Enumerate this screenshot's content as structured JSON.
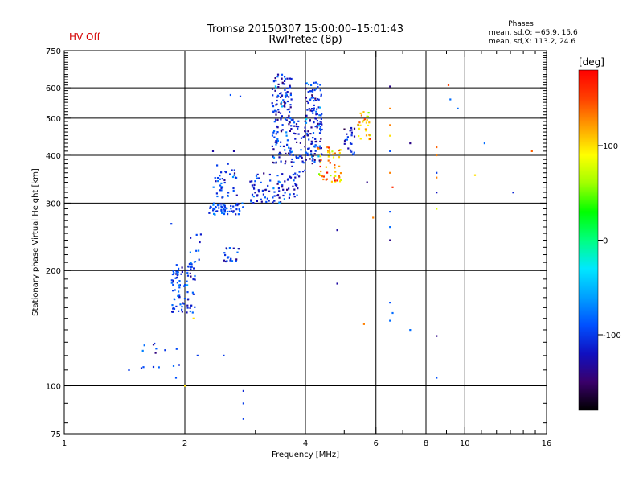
{
  "header": {
    "title_line1": "Tromsø 20150307 15:00:00–15:01:43",
    "title_line2": "RwPretec (8p)",
    "hv_status": "HV Off",
    "phase_title": "Phases",
    "phase_line1": "mean, sd,O: −65.9, 15.6",
    "phase_line2": "mean, sd,X: 113.2, 24.6",
    "hv_color": "#d40000"
  },
  "colorbar": {
    "label": "[deg]",
    "min": -180,
    "max": 180,
    "ticks": [
      100,
      0,
      -100
    ],
    "stops": [
      "#000000",
      "#3a006a",
      "#1010c0",
      "#0050ff",
      "#00a0ff",
      "#00e8ff",
      "#00ff80",
      "#00ff00",
      "#a0ff00",
      "#ffff00",
      "#ffa000",
      "#ff4000",
      "#ff0000"
    ]
  },
  "chart_data": {
    "type": "scatter",
    "xlabel": "Frequency [MHz]",
    "ylabel": "Stationary phase Virtual Height [km]",
    "xscale": "log",
    "yscale": "log",
    "xlim": [
      1,
      16
    ],
    "ylim": [
      75,
      750
    ],
    "xticks": [
      1,
      2,
      4,
      6,
      8,
      10,
      16
    ],
    "yticks": [
      75,
      100,
      200,
      300,
      400,
      500,
      600,
      750
    ],
    "xgrid": [
      2,
      4,
      6,
      8,
      10
    ],
    "ygrid": [
      100,
      200,
      300,
      400,
      500,
      600
    ],
    "grid": true,
    "clusters": [
      {
        "f0": 1.85,
        "f1": 2.12,
        "h0": 155,
        "h1": 210,
        "n": 90,
        "phase": -100,
        "phase_sd": 20
      },
      {
        "f0": 1.55,
        "f1": 1.95,
        "h0": 110,
        "h1": 130,
        "n": 14,
        "phase": -100,
        "phase_sd": 20
      },
      {
        "f0": 2.05,
        "f1": 2.2,
        "h0": 210,
        "h1": 250,
        "n": 10,
        "phase": -100,
        "phase_sd": 15
      },
      {
        "f0": 2.5,
        "f1": 2.75,
        "h0": 210,
        "h1": 230,
        "n": 22,
        "phase": -100,
        "phase_sd": 20
      },
      {
        "f0": 2.3,
        "f1": 2.8,
        "h0": 280,
        "h1": 300,
        "n": 60,
        "phase": -90,
        "phase_sd": 15
      },
      {
        "f0": 2.35,
        "f1": 2.7,
        "h0": 310,
        "h1": 380,
        "n": 40,
        "phase": -100,
        "phase_sd": 20
      },
      {
        "f0": 2.9,
        "f1": 3.9,
        "h0": 300,
        "h1": 360,
        "n": 90,
        "phase": -110,
        "phase_sd": 20
      },
      {
        "f0": 3.3,
        "f1": 3.7,
        "h0": 380,
        "h1": 650,
        "n": 150,
        "phase": -105,
        "phase_sd": 25
      },
      {
        "f0": 3.7,
        "f1": 4.0,
        "h0": 350,
        "h1": 500,
        "n": 40,
        "phase": -110,
        "phase_sd": 20
      },
      {
        "f0": 4.0,
        "f1": 4.4,
        "h0": 380,
        "h1": 620,
        "n": 130,
        "phase": -110,
        "phase_sd": 25
      },
      {
        "f0": 4.3,
        "f1": 4.9,
        "h0": 340,
        "h1": 420,
        "n": 55,
        "phase": 120,
        "phase_sd": 30
      },
      {
        "f0": 5.0,
        "f1": 5.3,
        "h0": 400,
        "h1": 480,
        "n": 22,
        "phase": -110,
        "phase_sd": 20
      },
      {
        "f0": 5.4,
        "f1": 5.8,
        "h0": 440,
        "h1": 520,
        "n": 30,
        "phase": 110,
        "phase_sd": 30
      }
    ],
    "points": [
      [
        1.45,
        110,
        -100
      ],
      [
        1.9,
        105,
        -90
      ],
      [
        2.0,
        100,
        100
      ],
      [
        2.15,
        120,
        -100
      ],
      [
        2.5,
        120,
        -100
      ],
      [
        2.8,
        97,
        -110
      ],
      [
        2.8,
        90,
        -100
      ],
      [
        2.8,
        82,
        -100
      ],
      [
        2.1,
        150,
        100
      ],
      [
        1.85,
        265,
        -100
      ],
      [
        2.6,
        575,
        -90
      ],
      [
        2.75,
        570,
        -100
      ],
      [
        2.35,
        410,
        -130
      ],
      [
        2.65,
        410,
        -130
      ],
      [
        4.8,
        255,
        -130
      ],
      [
        4.8,
        185,
        -130
      ],
      [
        5.6,
        145,
        130
      ],
      [
        5.7,
        340,
        -140
      ],
      [
        5.9,
        275,
        130
      ],
      [
        6.5,
        605,
        -140
      ],
      [
        6.5,
        530,
        130
      ],
      [
        6.5,
        480,
        130
      ],
      [
        6.5,
        450,
        100
      ],
      [
        6.5,
        410,
        -90
      ],
      [
        6.5,
        360,
        130
      ],
      [
        6.6,
        330,
        160
      ],
      [
        6.5,
        285,
        -90
      ],
      [
        6.5,
        260,
        -80
      ],
      [
        6.5,
        240,
        -140
      ],
      [
        6.5,
        165,
        -90
      ],
      [
        6.6,
        155,
        -80
      ],
      [
        6.5,
        148,
        -80
      ],
      [
        7.3,
        140,
        -80
      ],
      [
        7.3,
        430,
        -140
      ],
      [
        8.5,
        420,
        140
      ],
      [
        8.5,
        400,
        130
      ],
      [
        8.5,
        360,
        -100
      ],
      [
        8.5,
        350,
        130
      ],
      [
        8.5,
        320,
        -120
      ],
      [
        8.5,
        290,
        80
      ],
      [
        8.5,
        135,
        -140
      ],
      [
        8.5,
        105,
        -90
      ],
      [
        9.1,
        610,
        150
      ],
      [
        9.2,
        560,
        -80
      ],
      [
        9.6,
        530,
        -80
      ],
      [
        11.2,
        430,
        -80
      ],
      [
        10.6,
        355,
        100
      ],
      [
        13.2,
        320,
        -110
      ],
      [
        14.7,
        410,
        140
      ]
    ]
  }
}
